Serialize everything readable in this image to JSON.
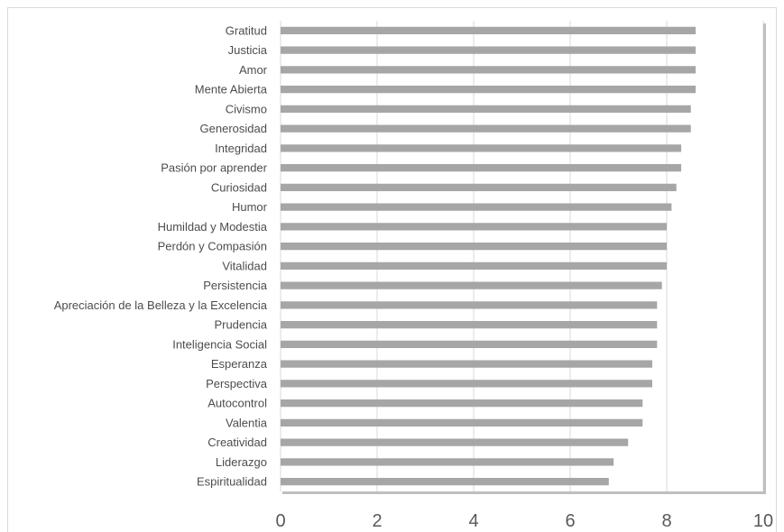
{
  "chart_data": {
    "type": "bar",
    "orientation": "horizontal",
    "categories": [
      "Gratitud",
      "Justicia",
      "Amor",
      "Mente Abierta",
      "Civismo",
      "Generosidad",
      "Integridad",
      "Pasión por aprender",
      "Curiosidad",
      "Humor",
      "Humildad y Modestia",
      "Perdón y Compasión",
      "Vitalidad",
      "Persistencia",
      "Apreciación de la Belleza y la Excelencia",
      "Prudencia",
      "Inteligencia Social",
      "Esperanza",
      "Perspectiva",
      "Autocontrol",
      "Valentia",
      "Creatividad",
      "Liderazgo",
      "Espiritualidad"
    ],
    "values": [
      8.6,
      8.6,
      8.6,
      8.6,
      8.5,
      8.5,
      8.3,
      8.3,
      8.2,
      8.1,
      8.0,
      8.0,
      8.0,
      7.9,
      7.8,
      7.8,
      7.8,
      7.7,
      7.7,
      7.5,
      7.5,
      7.2,
      6.9,
      6.8
    ],
    "xlim": [
      0,
      10
    ],
    "x_ticks": [
      "0",
      "2",
      "4",
      "6",
      "8",
      "10"
    ],
    "x_tick_values": [
      0,
      2,
      4,
      6,
      8,
      10
    ],
    "grid": true,
    "bar_color": "#a6a6a6",
    "grid_color": "#d9d9d9",
    "title": "",
    "xlabel": "",
    "ylabel": ""
  }
}
